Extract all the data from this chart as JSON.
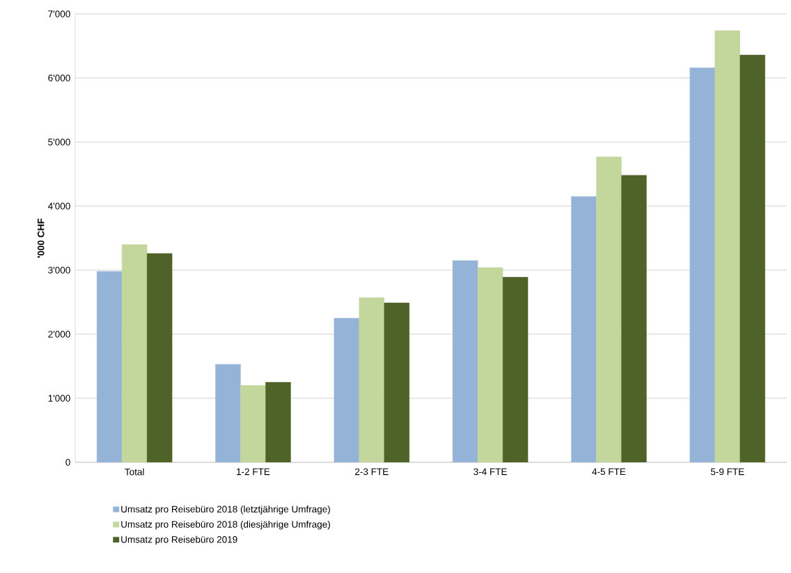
{
  "chart_data": {
    "type": "bar",
    "ylabel": "'000 CHF",
    "categories": [
      "Total",
      "1-2 FTE",
      "2-3 FTE",
      "3-4 FTE",
      "4-5 FTE",
      "5-9 FTE"
    ],
    "series": [
      {
        "name": "Umsatz pro Reisebüro 2018 (letztjährige Umfrage)",
        "color": "#95b3d7",
        "values": [
          2980,
          1530,
          2250,
          3150,
          4150,
          6160
        ]
      },
      {
        "name": "Umsatz pro Reisebüro 2018 (diesjährige Umfrage)",
        "color": "#c3d69b",
        "values": [
          3400,
          1200,
          2570,
          3040,
          4770,
          6740
        ]
      },
      {
        "name": "Umsatz pro Reisebüro 2019",
        "color": "#4f6228",
        "values": [
          3260,
          1250,
          2490,
          2890,
          4480,
          6360
        ]
      }
    ],
    "ylim": [
      0,
      7000
    ],
    "yticks": [
      0,
      {
        "value": 1000,
        "label": "1'000"
      },
      {
        "value": 2000,
        "label": "2'000"
      },
      {
        "value": 3000,
        "label": "3'000"
      },
      {
        "value": 4000,
        "label": "4'000"
      },
      {
        "value": 5000,
        "label": "5'000"
      },
      {
        "value": 6000,
        "label": "6'000"
      },
      {
        "value": 7000,
        "label": "7'000"
      }
    ],
    "grid": "y",
    "legend": "bottom"
  }
}
